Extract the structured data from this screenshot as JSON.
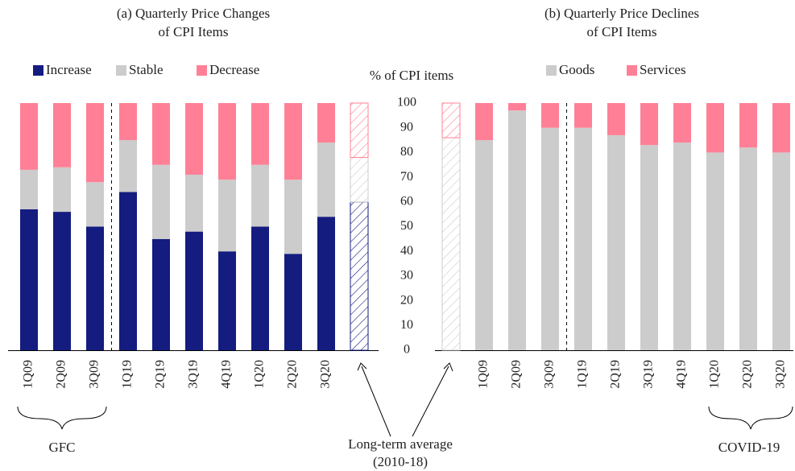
{
  "chart_data": [
    {
      "type": "stacked_bar",
      "title": [
        "(a) Quarterly Price Changes",
        "of CPI Items"
      ],
      "ylabel": "% of CPI items",
      "categories": [
        "1Q09",
        "2Q09",
        "3Q09",
        "1Q19",
        "2Q19",
        "3Q19",
        "4Q19",
        "1Q20",
        "2Q20",
        "3Q20",
        null
      ],
      "series": [
        {
          "name": "Increase",
          "color": "#141c80",
          "values": [
            57,
            56,
            50,
            64,
            45,
            48,
            40,
            50,
            39,
            54,
            60
          ]
        },
        {
          "name": "Stable",
          "color": "#cccccc",
          "values": [
            16,
            18,
            18,
            21,
            30,
            23,
            29,
            25,
            30,
            30,
            18
          ]
        },
        {
          "name": "Decrease",
          "color": "#ff8096",
          "values": [
            27,
            26,
            32,
            15,
            25,
            29,
            31,
            25,
            31,
            16,
            22
          ]
        }
      ],
      "hatched_index": 10,
      "ylim": [
        0,
        100
      ],
      "yticks": [
        0,
        10,
        20,
        30,
        40,
        50,
        60,
        70,
        80,
        90,
        100
      ],
      "annotations": [
        "GFC"
      ],
      "note": [
        "Long-term average",
        "(2010-18)"
      ]
    },
    {
      "type": "stacked_bar",
      "title": [
        "(b) Quarterly Price Declines",
        "of CPI Items"
      ],
      "categories": [
        null,
        "1Q09",
        "2Q09",
        "3Q09",
        "1Q19",
        "2Q19",
        "3Q19",
        "4Q19",
        "1Q20",
        "2Q20",
        "3Q20"
      ],
      "series": [
        {
          "name": "Goods",
          "color": "#cccccc",
          "values": [
            86,
            85,
            97,
            90,
            90,
            87,
            83,
            84,
            80,
            82,
            80
          ]
        },
        {
          "name": "Services",
          "color": "#ff8096",
          "values": [
            14,
            15,
            3,
            10,
            10,
            13,
            17,
            16,
            20,
            18,
            20
          ]
        }
      ],
      "hatched_index": 0,
      "ylim": [
        0,
        100
      ],
      "annotations": [
        "COVID-19"
      ]
    }
  ]
}
